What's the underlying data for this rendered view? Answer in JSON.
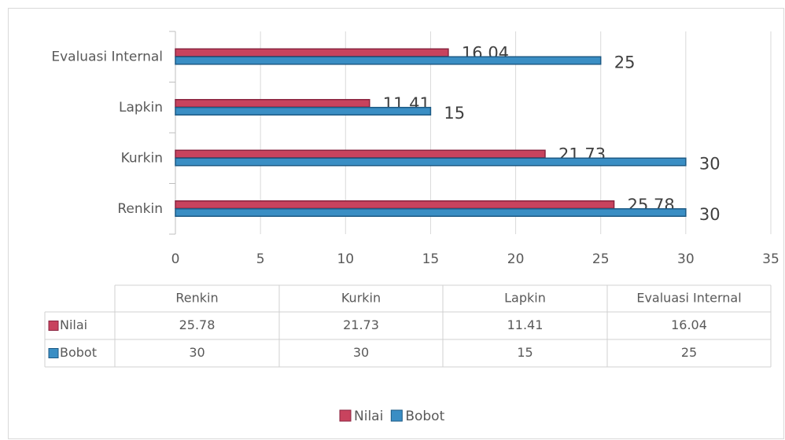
{
  "chart_data": {
    "type": "hbar",
    "categories": [
      "Renkin",
      "Kurkin",
      "Lapkin",
      "Evaluasi Internal"
    ],
    "series": [
      {
        "name": "Nilai",
        "color": "#c8435e",
        "values": [
          25.78,
          21.73,
          11.41,
          16.04
        ]
      },
      {
        "name": "Bobot",
        "color": "#3a8ec4",
        "values": [
          30,
          30,
          15,
          25
        ]
      }
    ],
    "xlim": [
      0,
      35
    ],
    "xticks": [
      0,
      5,
      10,
      15,
      20,
      25,
      30,
      35
    ],
    "grid": true,
    "legend": "bottom"
  }
}
